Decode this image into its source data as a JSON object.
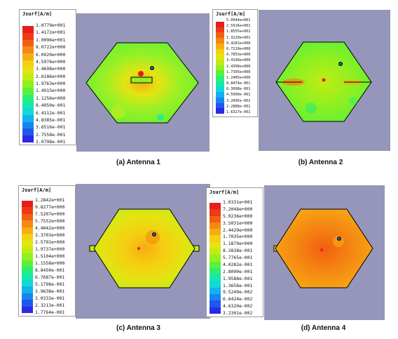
{
  "legend_title": "Jsurf[A/m]",
  "panels": [
    {
      "caption": "(a) Antenna 1",
      "values": [
        "1.0779e+001",
        "1.4172e+001",
        "1.0096e+001",
        "8.0722e+000",
        "6.0920e+000",
        "4.5976e+000",
        "3.4698e+000",
        "2.6186e+000",
        "1.9763e+000",
        "1.4915e+000",
        "1.1256e+000",
        "8.4950e-001",
        "6.4112e-001",
        "4.8385e-001",
        "3.6516e-001",
        "2.7558e-001",
        "2.0798e-001"
      ]
    },
    {
      "caption": "(b) Antenna 2",
      "values": [
        "5.0944e+001",
        "2.5916e+001",
        "1.8555e+001",
        "1.3220e+001",
        "9.4281e+000",
        "6.7219e+000",
        "4.7853e+000",
        "3.4199e+000",
        "2.4390e+000",
        "1.7395e+000",
        "1.2405e+000",
        "8.8474e-001",
        "6.3098e-001",
        "4.5000e-001",
        "3.2095e-001",
        "2.2888e-001",
        "1.6327e-001"
      ]
    },
    {
      "caption": "(c) Antenna 3",
      "values": [
        "1.2842e+001",
        "9.8277e+000",
        "7.5207e+000",
        "5.7552e+000",
        "4.4042e+000",
        "3.3703e+000",
        "2.5792e+000",
        "1.9737e+000",
        "1.5104e+000",
        "1.1558e+000",
        "8.8450e-001",
        "6.7687e-001",
        "5.1798e-001",
        "3.9638e-001",
        "3.0333e-001",
        "2.3213e-001",
        "1.7764e-001"
      ]
    },
    {
      "caption": "(d) Antenna 4",
      "values": [
        "1.0331e+001",
        "7.2048e+000",
        "5.0236e+000",
        "3.5031e+000",
        "2.4429e+000",
        "1.7035e+000",
        "1.1879e+000",
        "8.2838e-001",
        "5.7765e-001",
        "4.0282e-001",
        "2.8090e-001",
        "1.9588e-001",
        "1.3658e-001",
        "9.5249e-002",
        "6.6424e-002",
        "4.6320e-002",
        "3.2301e-002"
      ]
    }
  ],
  "scale_colors": [
    "#e81c1c",
    "#ef3a14",
    "#f35f12",
    "#f58812",
    "#f6ad12",
    "#f5cf12",
    "#e3e412",
    "#c0ec14",
    "#90f020",
    "#5cf038",
    "#2cee70",
    "#14e8aa",
    "#12d8d6",
    "#12b2ee",
    "#1486f2",
    "#1e58ee",
    "#2a2ae6"
  ]
}
